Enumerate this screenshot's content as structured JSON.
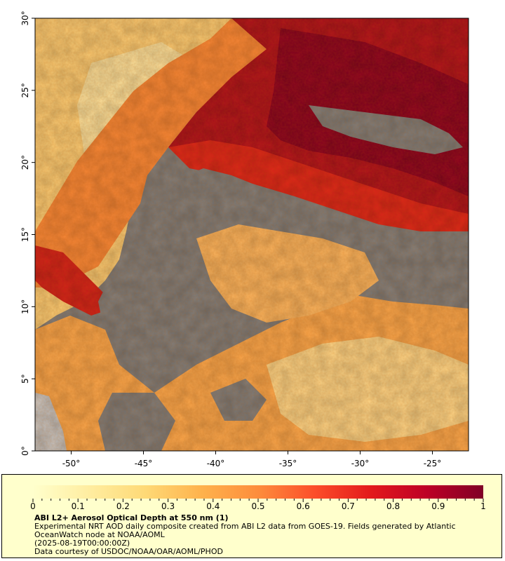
{
  "map": {
    "x_axis": {
      "range_deg": [
        -52.5,
        -22.5
      ],
      "ticks": [
        {
          "value": -50,
          "label": "-50°"
        },
        {
          "value": -45,
          "label": "-45°"
        },
        {
          "value": -40,
          "label": "-40°"
        },
        {
          "value": -35,
          "label": "-35°"
        },
        {
          "value": -30,
          "label": "-30°"
        },
        {
          "value": -25,
          "label": "-25°"
        }
      ]
    },
    "y_axis": {
      "range_deg": [
        0,
        30
      ],
      "ticks": [
        {
          "value": 0,
          "label": "0°"
        },
        {
          "value": 5,
          "label": "5°"
        },
        {
          "value": 10,
          "label": "10°"
        },
        {
          "value": 15,
          "label": "15°"
        },
        {
          "value": 20,
          "label": "20°"
        },
        {
          "value": 25,
          "label": "25°"
        },
        {
          "value": 30,
          "label": "30°"
        }
      ]
    },
    "colors": {
      "no_data": "#808080",
      "land": "#c8c8c8"
    }
  },
  "legend": {
    "min": 0,
    "max": 1,
    "labels": [
      "0",
      "0.1",
      "0.2",
      "0.3",
      "0.4",
      "0.5",
      "0.6",
      "0.7",
      "0.8",
      "0.9",
      "1"
    ],
    "colors": [
      "#ffffcc",
      "#ffeda0",
      "#fed976",
      "#feb24c",
      "#fd8d3c",
      "#fc4e2a",
      "#e31a1c",
      "#bd0026",
      "#800026"
    ],
    "background": "#ffffcc"
  },
  "caption": {
    "title": "ABI L2+ Aerosol Optical Depth at 550 nm (1)",
    "line1": "Experimental NRT AOD daily composite created from ABI L2 data from GOES-19. Fields generated by Atlantic OceanWatch node at NOAA/AOML",
    "line2": "(2025-08-19T00:00:00Z)",
    "line3": "Data courtesy of USDOC/NOAA/OAR/AOML/PHOD"
  }
}
